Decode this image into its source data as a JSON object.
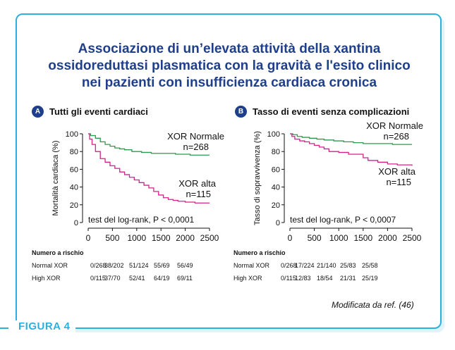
{
  "title_lines": [
    "Associazione di un’elevata attività della xantina",
    "ossidoreduttasi plasmatica con la gravità e l'esito clinico",
    "nei pazienti con insufficienza cardiaca cronica"
  ],
  "panels": [
    {
      "badge": "A",
      "heading": "Tutti gli eventi cardiaci",
      "ylabel": "Mortalità cardiaca (%)",
      "test_text": "test del log-rank, P < 0,0001",
      "series_labels": [
        {
          "name": "XOR Normale",
          "n": "n=268"
        },
        {
          "name": "XOR alta",
          "n": "n=115"
        }
      ]
    },
    {
      "badge": "B",
      "heading": "Tasso di eventi senza complicazioni",
      "ylabel": "Tasso di sopravvivenza (%)",
      "test_text": "test del log-rank, P < 0,0007",
      "series_labels": [
        {
          "name": "XOR Normale",
          "n": "n=268"
        },
        {
          "name": "XOR alta",
          "n": "n=115"
        }
      ]
    }
  ],
  "risk_tables": [
    {
      "title": "Numero a rischio",
      "rows": [
        {
          "label": "Normal XOR",
          "values": [
            "0/268",
            "38/202",
            "51/124",
            "55/69",
            "56/49"
          ]
        },
        {
          "label": "High XOR",
          "values": [
            "0/115",
            "37/70",
            "52/41",
            "64/19",
            "69/11"
          ]
        }
      ]
    },
    {
      "title": "Numero a rischio",
      "rows": [
        {
          "label": "Normal XOR",
          "values": [
            "0/268",
            "17/224",
            "21/140",
            "25/83",
            "25/58"
          ]
        },
        {
          "label": "High XOR",
          "values": [
            "0/115",
            "12/83",
            "18/54",
            "21/31",
            "25/19"
          ]
        }
      ]
    }
  ],
  "footnote": "Modificata da ref. (46)",
  "figure_label": "FIGURA 4",
  "colors": {
    "normal": "#2e9a4e",
    "high": "#d6218a",
    "title": "#1f3f8c",
    "frame": "#2bb0e0"
  },
  "chart_data": [
    {
      "type": "line",
      "title": "Tutti gli eventi cardiaci",
      "xlabel": "",
      "ylabel": "Mortalità cardiaca (%)",
      "xlim": [
        0,
        2500
      ],
      "ylim": [
        0,
        100
      ],
      "xticks": [
        0,
        500,
        1000,
        1500,
        2000,
        2500
      ],
      "yticks": [
        0,
        20,
        40,
        60,
        80,
        100
      ],
      "series": [
        {
          "name": "XOR Normale",
          "x": [
            0,
            50,
            150,
            250,
            350,
            450,
            550,
            650,
            750,
            900,
            1100,
            1300,
            1500,
            1800,
            2100,
            2500
          ],
          "y": [
            100,
            98,
            95,
            91,
            88,
            86,
            84,
            83,
            82,
            80,
            79,
            78,
            78,
            77,
            76,
            76
          ]
        },
        {
          "name": "XOR alta",
          "x": [
            0,
            30,
            80,
            150,
            250,
            350,
            450,
            550,
            650,
            750,
            850,
            950,
            1050,
            1150,
            1250,
            1350,
            1450,
            1550,
            1650,
            1750,
            1850,
            2000,
            2200,
            2500
          ],
          "y": [
            100,
            94,
            88,
            80,
            72,
            68,
            64,
            61,
            57,
            54,
            51,
            48,
            45,
            42,
            39,
            35,
            31,
            28,
            26,
            25,
            24,
            23,
            22,
            22
          ]
        }
      ]
    },
    {
      "type": "line",
      "title": "Tasso di eventi senza complicazioni",
      "xlabel": "",
      "ylabel": "Tasso di sopravvivenza (%)",
      "xlim": [
        0,
        2500
      ],
      "ylim": [
        0,
        100
      ],
      "xticks": [
        0,
        500,
        1000,
        1500,
        2000,
        2500
      ],
      "yticks": [
        0,
        20,
        40,
        60,
        80,
        100
      ],
      "series": [
        {
          "name": "XOR Normale",
          "x": [
            0,
            60,
            150,
            250,
            400,
            550,
            700,
            900,
            1100,
            1300,
            1500,
            1800,
            2100,
            2500
          ],
          "y": [
            100,
            99,
            97,
            96,
            95,
            94,
            93,
            92,
            91,
            90,
            89,
            89,
            88,
            88
          ]
        },
        {
          "name": "XOR alta",
          "x": [
            0,
            40,
            100,
            200,
            300,
            400,
            500,
            600,
            700,
            800,
            1000,
            1200,
            1400,
            1500,
            1600,
            1800,
            2000,
            2200,
            2500
          ],
          "y": [
            100,
            97,
            94,
            92,
            91,
            89,
            87,
            85,
            83,
            80,
            79,
            77,
            77,
            73,
            70,
            68,
            66,
            65,
            64
          ]
        }
      ]
    }
  ]
}
